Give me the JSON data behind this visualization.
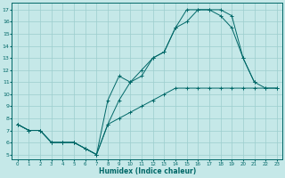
{
  "xlabel": "Humidex (Indice chaleur)",
  "bg_color": "#c5e8e8",
  "grid_color": "#9ccece",
  "line_color": "#006868",
  "xlim": [
    -0.5,
    23.5
  ],
  "ylim": [
    4.6,
    17.6
  ],
  "xticks": [
    0,
    1,
    2,
    3,
    4,
    5,
    6,
    7,
    8,
    9,
    10,
    11,
    12,
    13,
    14,
    15,
    16,
    17,
    18,
    19,
    20,
    21,
    22,
    23
  ],
  "yticks": [
    5,
    6,
    7,
    8,
    9,
    10,
    11,
    12,
    13,
    14,
    15,
    16,
    17
  ],
  "line1_x": [
    0,
    1,
    2,
    3,
    4,
    5,
    6,
    7,
    8,
    9,
    10,
    11,
    12,
    13,
    14,
    15,
    16,
    17,
    18,
    19,
    20,
    21,
    22,
    23
  ],
  "line1_y": [
    7.5,
    7.0,
    7.0,
    6.0,
    6.0,
    6.0,
    5.5,
    5.0,
    7.5,
    8.0,
    8.5,
    9.0,
    9.5,
    10.0,
    10.5,
    10.5,
    10.5,
    10.5,
    10.5,
    10.5,
    10.5,
    10.5,
    10.5,
    10.5
  ],
  "line2_x": [
    0,
    1,
    2,
    3,
    4,
    5,
    6,
    7,
    8,
    9,
    10,
    11,
    12,
    13,
    14,
    15,
    16,
    17,
    18,
    19,
    20,
    21
  ],
  "line2_y": [
    7.5,
    7.0,
    7.0,
    6.0,
    6.0,
    6.0,
    5.5,
    5.0,
    7.5,
    9.5,
    11.0,
    11.5,
    13.0,
    13.5,
    15.5,
    16.0,
    17.0,
    17.0,
    17.0,
    16.5,
    13.0,
    11.0
  ],
  "line3_x": [
    0,
    1,
    2,
    3,
    4,
    5,
    6,
    7,
    8,
    9,
    10,
    11,
    12,
    13,
    14,
    15,
    16,
    17,
    18,
    19,
    20,
    21,
    22,
    23
  ],
  "line3_y": [
    7.5,
    7.0,
    7.0,
    6.0,
    6.0,
    6.0,
    5.5,
    5.0,
    9.5,
    11.5,
    11.0,
    12.0,
    13.0,
    13.5,
    15.5,
    17.0,
    17.0,
    17.0,
    16.5,
    15.5,
    13.0,
    11.0,
    10.5,
    10.5
  ]
}
